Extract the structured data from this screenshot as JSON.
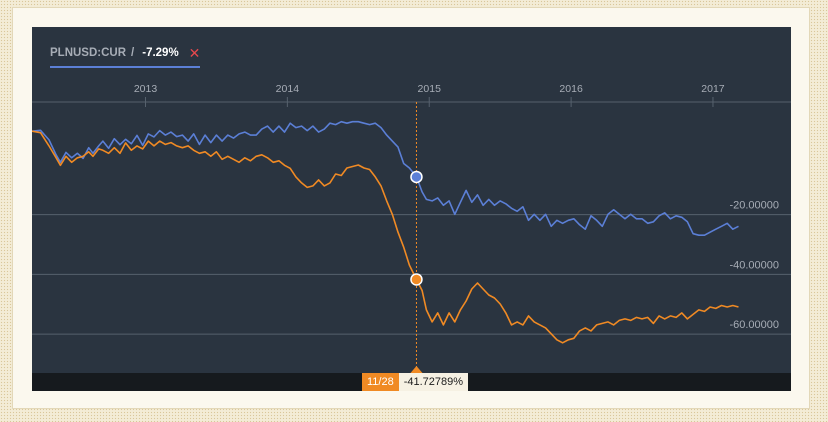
{
  "legend": {
    "ticker": "PLNUSD:CUR",
    "slash": "/",
    "change": "-7.29%",
    "close_symbol": "✕"
  },
  "tooltip": {
    "date": "11/28",
    "value": "-41.72789%"
  },
  "colors": {
    "panel_bg": "#2a3440",
    "blue_series": "#5b7fd6",
    "orange_series": "#f08a24",
    "grid": "#56616d",
    "label": "#a7adb6"
  },
  "chart_data": {
    "type": "line",
    "x_tick_labels": [
      "2013",
      "2014",
      "2015",
      "2016",
      "2017"
    ],
    "x_ticks": [
      2013.0,
      2014.0,
      2015.0,
      2016.0,
      2017.0
    ],
    "xlim": [
      2012.2,
      2017.55
    ],
    "y_tick_labels": [
      "-20.00000",
      "-40.00000",
      "-60.00000"
    ],
    "y_ticks": [
      -20,
      -40,
      -60
    ],
    "ylim": [
      -73,
      15
    ],
    "cursor_x": 2014.91,
    "series": [
      {
        "color": "#5b7fd6",
        "marker": {
          "x": 2014.91,
          "y": -7.4
        },
        "points": [
          [
            2012.2,
            7.9
          ],
          [
            2012.26,
            8.2
          ],
          [
            2012.32,
            5.0
          ],
          [
            2012.37,
            0.0
          ],
          [
            2012.4,
            -2.5
          ],
          [
            2012.44,
            0.8
          ],
          [
            2012.48,
            -1.0
          ],
          [
            2012.52,
            0.5
          ],
          [
            2012.56,
            -1.2
          ],
          [
            2012.6,
            2.4
          ],
          [
            2012.63,
            0.5
          ],
          [
            2012.67,
            3.0
          ],
          [
            2012.7,
            4.6
          ],
          [
            2012.74,
            2.2
          ],
          [
            2012.78,
            5.4
          ],
          [
            2012.82,
            3.4
          ],
          [
            2012.86,
            5.2
          ],
          [
            2012.9,
            3.7
          ],
          [
            2012.94,
            6.5
          ],
          [
            2012.98,
            3.2
          ],
          [
            2013.02,
            7.0
          ],
          [
            2013.06,
            6.0
          ],
          [
            2013.1,
            8.1
          ],
          [
            2013.14,
            6.6
          ],
          [
            2013.18,
            7.6
          ],
          [
            2013.22,
            6.1
          ],
          [
            2013.26,
            6.6
          ],
          [
            2013.3,
            4.6
          ],
          [
            2013.34,
            7.0
          ],
          [
            2013.38,
            3.5
          ],
          [
            2013.42,
            6.6
          ],
          [
            2013.46,
            4.1
          ],
          [
            2013.5,
            6.6
          ],
          [
            2013.54,
            4.6
          ],
          [
            2013.58,
            6.6
          ],
          [
            2013.62,
            5.6
          ],
          [
            2013.66,
            7.0
          ],
          [
            2013.7,
            7.6
          ],
          [
            2013.74,
            6.6
          ],
          [
            2013.78,
            6.6
          ],
          [
            2013.82,
            8.6
          ],
          [
            2013.86,
            9.6
          ],
          [
            2013.9,
            7.6
          ],
          [
            2013.94,
            9.6
          ],
          [
            2013.98,
            7.6
          ],
          [
            2014.02,
            10.6
          ],
          [
            2014.06,
            9.1
          ],
          [
            2014.1,
            9.6
          ],
          [
            2014.14,
            8.1
          ],
          [
            2014.18,
            9.6
          ],
          [
            2014.22,
            7.6
          ],
          [
            2014.26,
            8.6
          ],
          [
            2014.3,
            10.6
          ],
          [
            2014.34,
            10.1
          ],
          [
            2014.38,
            11.1
          ],
          [
            2014.42,
            10.6
          ],
          [
            2014.46,
            11.1
          ],
          [
            2014.5,
            11.1
          ],
          [
            2014.54,
            10.6
          ],
          [
            2014.58,
            10.1
          ],
          [
            2014.62,
            10.6
          ],
          [
            2014.66,
            9.1
          ],
          [
            2014.7,
            6.6
          ],
          [
            2014.74,
            4.6
          ],
          [
            2014.78,
            2.6
          ],
          [
            2014.82,
            -2.9
          ],
          [
            2014.86,
            -4.4
          ],
          [
            2014.91,
            -7.4
          ],
          [
            2014.95,
            -12.4
          ],
          [
            2014.98,
            -14.9
          ],
          [
            2015.02,
            -15.4
          ],
          [
            2015.06,
            -14.4
          ],
          [
            2015.1,
            -16.9
          ],
          [
            2015.14,
            -15.4
          ],
          [
            2015.18,
            -19.9
          ],
          [
            2015.22,
            -15.9
          ],
          [
            2015.26,
            -11.9
          ],
          [
            2015.3,
            -15.9
          ],
          [
            2015.34,
            -13.4
          ],
          [
            2015.38,
            -16.9
          ],
          [
            2015.42,
            -14.9
          ],
          [
            2015.46,
            -16.9
          ],
          [
            2015.5,
            -15.4
          ],
          [
            2015.54,
            -16.4
          ],
          [
            2015.58,
            -17.9
          ],
          [
            2015.62,
            -18.9
          ],
          [
            2015.66,
            -17.4
          ],
          [
            2015.7,
            -21.9
          ],
          [
            2015.74,
            -19.9
          ],
          [
            2015.78,
            -21.9
          ],
          [
            2015.82,
            -19.9
          ],
          [
            2015.86,
            -23.9
          ],
          [
            2015.9,
            -21.9
          ],
          [
            2015.94,
            -22.9
          ],
          [
            2015.98,
            -21.9
          ],
          [
            2016.02,
            -21.4
          ],
          [
            2016.06,
            -23.4
          ],
          [
            2016.1,
            -24.9
          ],
          [
            2016.14,
            -20.4
          ],
          [
            2016.18,
            -21.9
          ],
          [
            2016.22,
            -23.9
          ],
          [
            2016.26,
            -19.9
          ],
          [
            2016.3,
            -18.4
          ],
          [
            2016.34,
            -19.9
          ],
          [
            2016.38,
            -21.4
          ],
          [
            2016.42,
            -19.9
          ],
          [
            2016.46,
            -21.4
          ],
          [
            2016.5,
            -21.4
          ],
          [
            2016.54,
            -22.9
          ],
          [
            2016.58,
            -22.4
          ],
          [
            2016.62,
            -20.4
          ],
          [
            2016.66,
            -19.4
          ],
          [
            2016.7,
            -21.4
          ],
          [
            2016.74,
            -20.4
          ],
          [
            2016.78,
            -20.9
          ],
          [
            2016.82,
            -22.4
          ],
          [
            2016.86,
            -26.4
          ],
          [
            2016.9,
            -26.9
          ],
          [
            2016.94,
            -26.9
          ],
          [
            2016.98,
            -25.9
          ],
          [
            2017.02,
            -24.9
          ],
          [
            2017.06,
            -23.9
          ],
          [
            2017.1,
            -22.9
          ],
          [
            2017.14,
            -24.9
          ],
          [
            2017.18,
            -23.9
          ]
        ]
      },
      {
        "color": "#f08a24",
        "marker": {
          "x": 2014.91,
          "y": -41.7
        },
        "points": [
          [
            2012.2,
            7.9
          ],
          [
            2012.26,
            7.4
          ],
          [
            2012.32,
            3.0
          ],
          [
            2012.37,
            -1.0
          ],
          [
            2012.4,
            -3.5
          ],
          [
            2012.44,
            -0.5
          ],
          [
            2012.48,
            -2.5
          ],
          [
            2012.52,
            -1.0
          ],
          [
            2012.56,
            -0.5
          ],
          [
            2012.6,
            1.0
          ],
          [
            2012.63,
            -0.5
          ],
          [
            2012.67,
            2.0
          ],
          [
            2012.7,
            1.5
          ],
          [
            2012.74,
            0.5
          ],
          [
            2012.78,
            2.4
          ],
          [
            2012.82,
            0.5
          ],
          [
            2012.86,
            4.0
          ],
          [
            2012.9,
            1.5
          ],
          [
            2012.94,
            3.0
          ],
          [
            2012.98,
            2.0
          ],
          [
            2013.02,
            4.6
          ],
          [
            2013.06,
            3.0
          ],
          [
            2013.1,
            4.6
          ],
          [
            2013.14,
            3.5
          ],
          [
            2013.18,
            4.1
          ],
          [
            2013.22,
            3.0
          ],
          [
            2013.26,
            2.4
          ],
          [
            2013.3,
            3.0
          ],
          [
            2013.34,
            1.5
          ],
          [
            2013.38,
            0.5
          ],
          [
            2013.42,
            1.0
          ],
          [
            2013.46,
            -0.5
          ],
          [
            2013.5,
            1.0
          ],
          [
            2013.54,
            -1.5
          ],
          [
            2013.58,
            -0.5
          ],
          [
            2013.62,
            -1.5
          ],
          [
            2013.66,
            -2.5
          ],
          [
            2013.7,
            -1.0
          ],
          [
            2013.74,
            -2.0
          ],
          [
            2013.78,
            -0.5
          ],
          [
            2013.82,
            0.0
          ],
          [
            2013.86,
            -1.0
          ],
          [
            2013.9,
            -2.5
          ],
          [
            2013.94,
            -2.0
          ],
          [
            2013.98,
            -3.5
          ],
          [
            2014.02,
            -4.5
          ],
          [
            2014.06,
            -7.4
          ],
          [
            2014.1,
            -9.4
          ],
          [
            2014.14,
            -10.9
          ],
          [
            2014.18,
            -10.4
          ],
          [
            2014.22,
            -8.4
          ],
          [
            2014.26,
            -10.4
          ],
          [
            2014.3,
            -9.4
          ],
          [
            2014.34,
            -6.4
          ],
          [
            2014.38,
            -6.9
          ],
          [
            2014.42,
            -4.4
          ],
          [
            2014.46,
            -3.9
          ],
          [
            2014.5,
            -3.4
          ],
          [
            2014.54,
            -4.4
          ],
          [
            2014.58,
            -4.9
          ],
          [
            2014.62,
            -7.4
          ],
          [
            2014.66,
            -10.4
          ],
          [
            2014.7,
            -15.4
          ],
          [
            2014.74,
            -19.9
          ],
          [
            2014.78,
            -25.9
          ],
          [
            2014.82,
            -30.9
          ],
          [
            2014.86,
            -36.9
          ],
          [
            2014.91,
            -41.7
          ],
          [
            2014.95,
            -45.4
          ],
          [
            2014.98,
            -51.9
          ],
          [
            2015.02,
            -55.9
          ],
          [
            2015.06,
            -52.9
          ],
          [
            2015.1,
            -56.9
          ],
          [
            2015.14,
            -52.9
          ],
          [
            2015.18,
            -55.9
          ],
          [
            2015.22,
            -51.9
          ],
          [
            2015.26,
            -48.9
          ],
          [
            2015.3,
            -44.9
          ],
          [
            2015.34,
            -42.9
          ],
          [
            2015.38,
            -44.9
          ],
          [
            2015.42,
            -46.9
          ],
          [
            2015.46,
            -47.9
          ],
          [
            2015.5,
            -49.9
          ],
          [
            2015.54,
            -52.9
          ],
          [
            2015.58,
            -56.9
          ],
          [
            2015.62,
            -55.9
          ],
          [
            2015.66,
            -56.9
          ],
          [
            2015.7,
            -53.9
          ],
          [
            2015.74,
            -55.9
          ],
          [
            2015.78,
            -56.9
          ],
          [
            2015.82,
            -57.9
          ],
          [
            2015.86,
            -59.9
          ],
          [
            2015.9,
            -61.9
          ],
          [
            2015.94,
            -62.9
          ],
          [
            2015.98,
            -61.9
          ],
          [
            2016.02,
            -61.4
          ],
          [
            2016.06,
            -58.9
          ],
          [
            2016.1,
            -57.9
          ],
          [
            2016.14,
            -58.9
          ],
          [
            2016.18,
            -56.9
          ],
          [
            2016.22,
            -56.4
          ],
          [
            2016.26,
            -55.9
          ],
          [
            2016.3,
            -56.9
          ],
          [
            2016.34,
            -55.4
          ],
          [
            2016.38,
            -54.9
          ],
          [
            2016.42,
            -55.4
          ],
          [
            2016.46,
            -54.4
          ],
          [
            2016.5,
            -54.9
          ],
          [
            2016.54,
            -54.4
          ],
          [
            2016.58,
            -56.4
          ],
          [
            2016.62,
            -53.9
          ],
          [
            2016.66,
            -54.9
          ],
          [
            2016.7,
            -53.9
          ],
          [
            2016.74,
            -54.4
          ],
          [
            2016.78,
            -52.9
          ],
          [
            2016.82,
            -54.9
          ],
          [
            2016.86,
            -53.4
          ],
          [
            2016.9,
            -51.9
          ],
          [
            2016.94,
            -52.4
          ],
          [
            2016.98,
            -50.9
          ],
          [
            2017.02,
            -51.4
          ],
          [
            2017.06,
            -50.4
          ],
          [
            2017.1,
            -50.9
          ],
          [
            2017.14,
            -50.4
          ],
          [
            2017.18,
            -50.9
          ]
        ]
      }
    ]
  }
}
